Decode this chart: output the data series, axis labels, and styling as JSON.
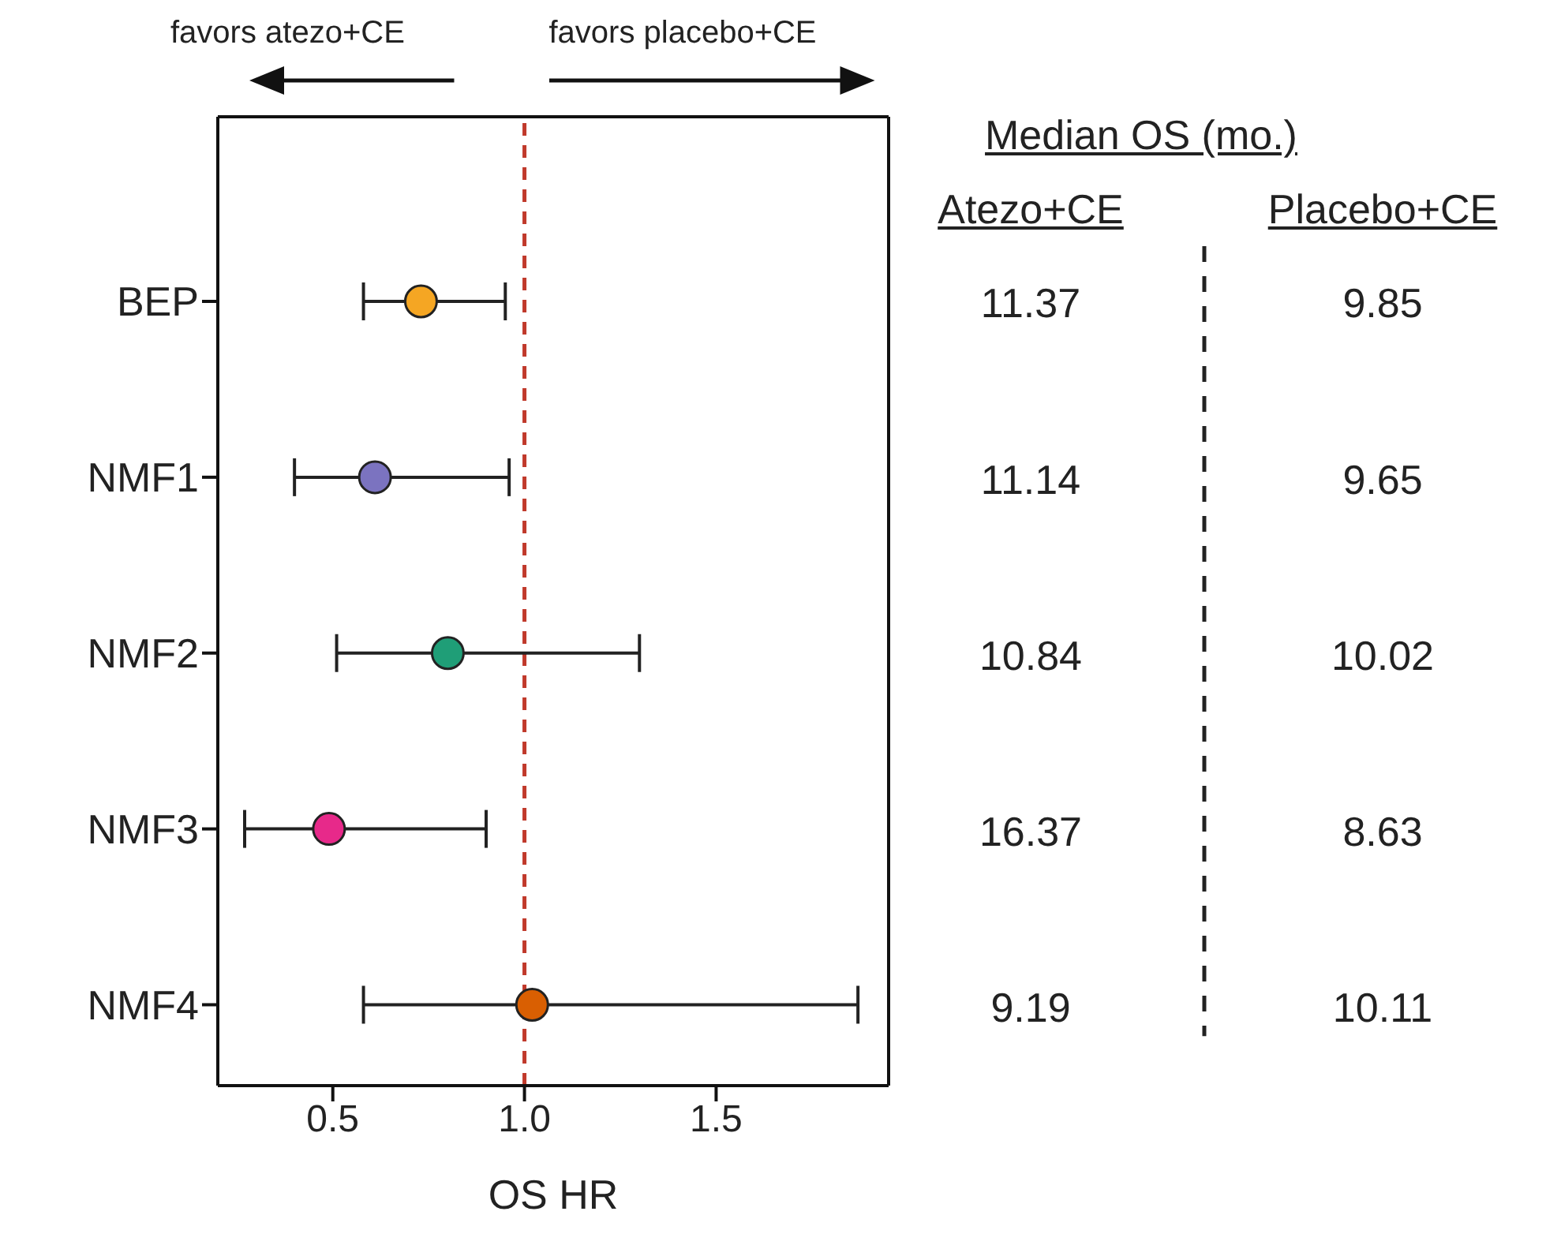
{
  "chart_data": [
    {
      "type": "scatter",
      "orientation": "horizontal",
      "xlabel": "OS HR",
      "categories": [
        "BEP",
        "NMF1",
        "NMF2",
        "NMF3",
        "NMF4"
      ],
      "values": [
        0.73,
        0.61,
        0.8,
        0.49,
        1.02
      ],
      "errors": [
        [
          0.58,
          0.95
        ],
        [
          0.4,
          0.96
        ],
        [
          0.51,
          1.3
        ],
        [
          0.27,
          0.9
        ],
        [
          0.58,
          1.87
        ]
      ],
      "colors": [
        "#f5a623",
        "#7b73c0",
        "#1f9e77",
        "#e7298a",
        "#d95f02"
      ],
      "xlim": [
        0.2,
        1.95
      ],
      "xticks": [
        0.5,
        {
          "value": 1,
          "label": "1.0"
        },
        1.5
      ],
      "ref_lines": [
        {
          "axis": "x",
          "value": 1,
          "color": "#c0392b",
          "line_style": "dashed"
        }
      ],
      "annotations": [
        "favors atezo+CE",
        "favors placebo+CE"
      ],
      "marker": "circle",
      "grid": false,
      "legend": false
    },
    {
      "type": "other",
      "title": "Median OS (mo.)",
      "annotations": [
        "Atezo+CE",
        "Placebo+CE",
        "11.37",
        "9.85",
        "11.14",
        "9.65",
        "10.84",
        "10.02",
        "16.37",
        "8.63",
        "9.19",
        "10.11"
      ]
    }
  ]
}
